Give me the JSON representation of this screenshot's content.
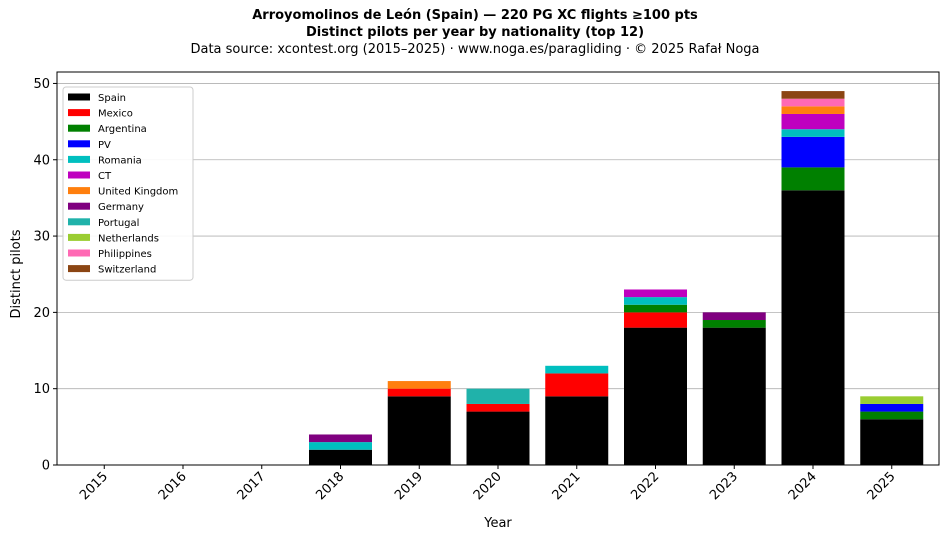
{
  "chart_data": {
    "type": "bar",
    "stacked": true,
    "title_line1": "Arroyomolinos de León (Spain)  —  220 PG XC flights ≥100 pts",
    "title_line2": "Distinct pilots per year by nationality (top 12)",
    "subtitle": "Data source: xcontest.org (2015–2025)  ·  www.noga.es/paragliding  ·  © 2025 Rafał Noga",
    "xlabel": "Year",
    "ylabel": "Distinct pilots",
    "ylim": [
      0,
      51.5
    ],
    "yticks": [
      0,
      10,
      20,
      30,
      40,
      50
    ],
    "grid": "horizontal",
    "legend_position": "upper-left",
    "categories": [
      "2015",
      "2016",
      "2017",
      "2018",
      "2019",
      "2020",
      "2021",
      "2022",
      "2023",
      "2024",
      "2025"
    ],
    "series": [
      {
        "name": "Spain",
        "color": "#000000",
        "values": [
          0,
          0,
          0,
          2,
          9,
          7,
          9,
          18,
          18,
          36,
          6
        ]
      },
      {
        "name": "Mexico",
        "color": "#ff0000",
        "values": [
          0,
          0,
          0,
          0,
          1,
          1,
          3,
          2,
          0,
          0,
          0
        ]
      },
      {
        "name": "Argentina",
        "color": "#008000",
        "values": [
          0,
          0,
          0,
          0,
          0,
          0,
          0,
          1,
          1,
          3,
          1
        ]
      },
      {
        "name": "PV",
        "color": "#0000ff",
        "values": [
          0,
          0,
          0,
          0,
          0,
          0,
          0,
          0,
          0,
          4,
          1
        ]
      },
      {
        "name": "Romania",
        "color": "#00bfbf",
        "values": [
          0,
          0,
          0,
          1,
          0,
          0,
          1,
          1,
          0,
          1,
          0
        ]
      },
      {
        "name": "CT",
        "color": "#bf00bf",
        "values": [
          0,
          0,
          0,
          0,
          0,
          0,
          0,
          1,
          0,
          2,
          0
        ]
      },
      {
        "name": "United Kingdom",
        "color": "#ff7f0e",
        "values": [
          0,
          0,
          0,
          0,
          1,
          0,
          0,
          0,
          0,
          1,
          0
        ]
      },
      {
        "name": "Germany",
        "color": "#800080",
        "values": [
          0,
          0,
          0,
          1,
          0,
          0,
          0,
          0,
          1,
          0,
          0
        ]
      },
      {
        "name": "Portugal",
        "color": "#20b2aa",
        "values": [
          0,
          0,
          0,
          0,
          0,
          2,
          0,
          0,
          0,
          0,
          0
        ]
      },
      {
        "name": "Netherlands",
        "color": "#9acd32",
        "values": [
          0,
          0,
          0,
          0,
          0,
          0,
          0,
          0,
          0,
          0,
          1
        ]
      },
      {
        "name": "Philippines",
        "color": "#ff69b4",
        "values": [
          0,
          0,
          0,
          0,
          0,
          0,
          0,
          0,
          0,
          1,
          0
        ]
      },
      {
        "name": "Switzerland",
        "color": "#8b4513",
        "values": [
          0,
          0,
          0,
          0,
          0,
          0,
          0,
          0,
          0,
          1,
          0
        ]
      }
    ]
  }
}
